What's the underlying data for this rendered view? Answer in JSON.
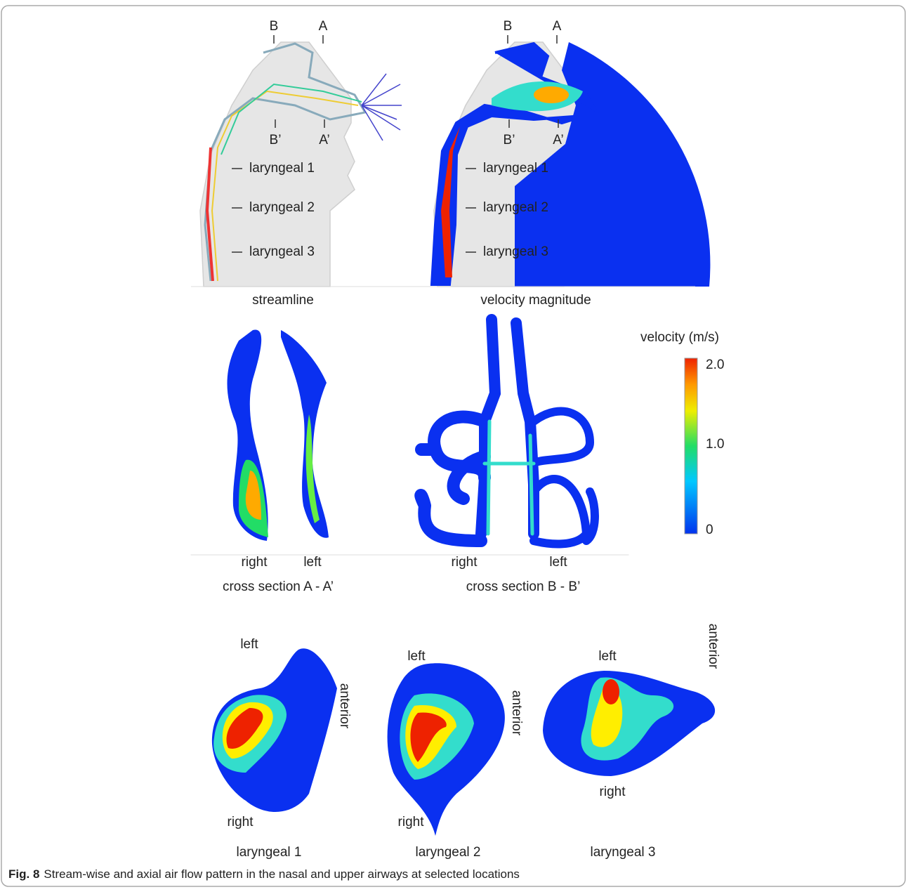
{
  "panels": [
    {
      "title": "streamline",
      "section_top": [
        "B",
        "A"
      ],
      "section_bottom": [
        "B’",
        "A’"
      ],
      "levels": [
        "laryngeal 1",
        "laryngeal 2",
        "laryngeal 3"
      ]
    },
    {
      "title": "velocity magnitude",
      "section_top": [
        "B",
        "A"
      ],
      "section_bottom": [
        "B’",
        "A’"
      ],
      "levels": [
        "laryngeal 1",
        "laryngeal 2",
        "laryngeal 3"
      ]
    }
  ],
  "colorbar": {
    "title": "velocity (m/s)",
    "ticks": [
      "2.0",
      "1.0",
      "0"
    ]
  },
  "cross_sections": [
    {
      "sides": [
        "right",
        "left"
      ],
      "title": "cross section A - A’"
    },
    {
      "sides": [
        "right",
        "left"
      ],
      "title": "cross section B - B’"
    }
  ],
  "laryngeal": [
    {
      "top": "left",
      "bottom": "right",
      "side": "anterior",
      "title": "laryngeal 1"
    },
    {
      "top": "left",
      "bottom": "right",
      "side": "anterior",
      "title": "laryngeal 2"
    },
    {
      "top": "left",
      "bottom": "right",
      "side": "anterior",
      "title": "laryngeal 3"
    }
  ],
  "caption": {
    "label": "Fig. 8",
    "text": "Stream-wise and axial air flow pattern in the nasal and upper airways at selected locations"
  }
}
